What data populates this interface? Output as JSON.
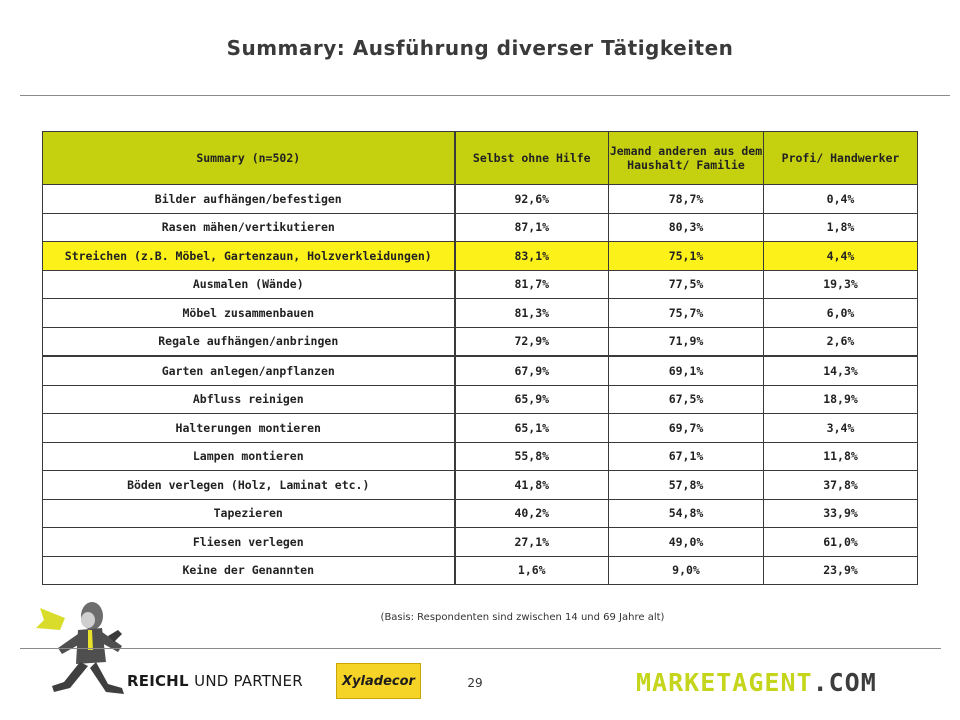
{
  "page": {
    "title": "Summary: Ausführung diverser Tätigkeiten",
    "basis": "(Basis: Respondenten sind zwischen 14 und 69 Jahre alt)",
    "page_number": "29"
  },
  "colors": {
    "header_bg": "#c5d10f",
    "highlight_row_bg": "#fcf21a",
    "brand_green": "#c4d51c",
    "brand_dark": "#3d3d3d"
  },
  "table": {
    "headers": [
      "Summary (n=502)",
      "Selbst ohne Hilfe",
      "Jemand anderen aus dem Haushalt/ Familie",
      "Profi/ Handwerker"
    ],
    "highlighted_row": "Streichen (z.B. Möbel, Gartenzaun, Holzverkleidungen)",
    "rows": [
      [
        "Bilder aufhängen/befestigen",
        "92,6%",
        "78,7%",
        "0,4%"
      ],
      [
        "Rasen mähen/vertikutieren",
        "87,1%",
        "80,3%",
        "1,8%"
      ],
      [
        "Streichen (z.B. Möbel, Gartenzaun, Holzverkleidungen)",
        "83,1%",
        "75,1%",
        "4,4%"
      ],
      [
        "Ausmalen (Wände)",
        "81,7%",
        "77,5%",
        "19,3%"
      ],
      [
        "Möbel zusammenbauen",
        "81,3%",
        "75,7%",
        "6,0%"
      ],
      [
        "Regale aufhängen/anbringen",
        "72,9%",
        "71,9%",
        "2,6%"
      ],
      [
        "Garten anlegen/anpflanzen",
        "67,9%",
        "69,1%",
        "14,3%"
      ],
      [
        "Abfluss reinigen",
        "65,9%",
        "67,5%",
        "18,9%"
      ],
      [
        "Halterungen montieren",
        "65,1%",
        "69,7%",
        "3,4%"
      ],
      [
        "Lampen montieren",
        "55,8%",
        "67,1%",
        "11,8%"
      ],
      [
        "Böden verlegen (Holz, Laminat etc.)",
        "41,8%",
        "57,8%",
        "37,8%"
      ],
      [
        "Tapezieren",
        "40,2%",
        "54,8%",
        "33,9%"
      ],
      [
        "Fliesen verlegen",
        "27,1%",
        "49,0%",
        "61,0%"
      ],
      [
        "Keine der Genannten",
        "1,6%",
        "9,0%",
        "23,9%"
      ]
    ]
  },
  "logos": {
    "reichl_bold": "REICHL",
    "reichl_rest": "UND PARTNER",
    "xyladecor": "Xyladecor",
    "marketagent_main": "MARKETAGENT",
    "marketagent_tld": ".COM",
    "mascot_icon": "running-businessman-icon"
  }
}
